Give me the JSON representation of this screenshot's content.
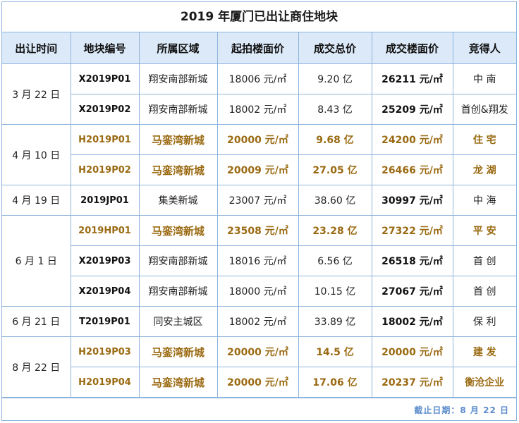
{
  "title": "2019 年厦门已出让商住地块",
  "headers": [
    "出让时间",
    "地块编号",
    "所属区域",
    "起拍楼面价",
    "成交总价",
    "成交楼面价",
    "竞得人"
  ],
  "groups": [
    {
      "date": "3 月 22 日",
      "rows": [
        {
          "code": "X2019P01",
          "area": "翔安南部新城",
          "start_price": "18006 元/㎡",
          "total": "9.20 亿",
          "final_price": "26211 元/㎡",
          "buyer": "中 南",
          "highlight": false
        },
        {
          "code": "X2019P02",
          "area": "翔安南部新城",
          "start_price": "18002 元/㎡",
          "total": "8.43 亿",
          "final_price": "25209 元/㎡",
          "buyer": "首创&翔发",
          "highlight": false
        }
      ]
    },
    {
      "date": "4 月 10 日",
      "rows": [
        {
          "code": "H2019P01",
          "area": "马銮湾新城",
          "start_price": "20000 元/㎡",
          "total": "9.68 亿",
          "final_price": "24200 元/㎡",
          "buyer": "住 宅",
          "highlight": true
        },
        {
          "code": "H2019P02",
          "area": "马銮湾新城",
          "start_price": "20009 元/㎡",
          "total": "27.05 亿",
          "final_price": "26466 元/㎡",
          "buyer": "龙 湖",
          "highlight": true
        }
      ]
    },
    {
      "date": "4 月 19 日",
      "rows": [
        {
          "code": "2019JP01",
          "area": "集美新城",
          "start_price": "23007 元/㎡",
          "total": "38.60 亿",
          "final_price": "30997 元/㎡",
          "buyer": "中 海",
          "highlight": false
        }
      ]
    },
    {
      "date": "6 月 1 日",
      "rows": [
        {
          "code": "2019HP01",
          "area": "马銮湾新城",
          "start_price": "23508 元/㎡",
          "total": "23.28 亿",
          "final_price": "27322 元/㎡",
          "buyer": "平 安",
          "highlight": true
        },
        {
          "code": "X2019P03",
          "area": "翔安南部新城",
          "start_price": "18016 元/㎡",
          "total": "6.56 亿",
          "final_price": "26518 元/㎡",
          "buyer": "首 创",
          "highlight": false
        },
        {
          "code": "X2019P04",
          "area": "翔安南部新城",
          "start_price": "18000 元/㎡",
          "total": "10.15 亿",
          "final_price": "27067 元/㎡",
          "buyer": "首 创",
          "highlight": false
        }
      ]
    },
    {
      "date": "6 月 21 日",
      "rows": [
        {
          "code": "T2019P01",
          "area": "同安主城区",
          "start_price": "18002 元/㎡",
          "total": "33.89 亿",
          "final_price": "18002 元/㎡",
          "buyer": "保 利",
          "highlight": false
        }
      ]
    },
    {
      "date": "8 月 22 日",
      "rows": [
        {
          "code": "H2019P03",
          "area": "马銮湾新城",
          "start_price": "20000 元/㎡",
          "total": "14.5 亿",
          "final_price": "20000 元/㎡",
          "buyer": "建 发",
          "highlight": true
        },
        {
          "code": "H2019P04",
          "area": "马銮湾新城",
          "start_price": "20000 元/㎡",
          "total": "17.06 亿",
          "final_price": "20237 元/㎡",
          "buyer": "衡沧企业",
          "highlight": true
        }
      ]
    }
  ],
  "footer": "截止日期：8 月 22 日",
  "colors": {
    "border": "#8fb4dd",
    "header_bg": "#dce9f8",
    "highlight_text": "#9a6a12",
    "footer_text": "#5b8ccc"
  }
}
